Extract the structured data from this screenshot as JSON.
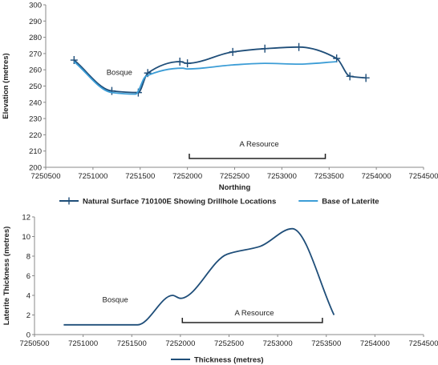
{
  "chart_data": [
    {
      "type": "line",
      "title": "",
      "xlabel": "Northing",
      "ylabel": "Elevation (metres)",
      "xlim": [
        7250500,
        7254500
      ],
      "ylim": [
        200,
        300
      ],
      "xticks": [
        7250500,
        7251000,
        7251500,
        7252000,
        7252500,
        7253000,
        7253500,
        7254000,
        7254500
      ],
      "yticks": [
        200,
        210,
        220,
        230,
        240,
        250,
        260,
        270,
        280,
        290,
        300
      ],
      "grid": false,
      "legend_position": "bottom",
      "series": [
        {
          "name": "Natural Surface 710100E Showing Drillhole Locations",
          "color": "#1f4e79",
          "markers": "plus",
          "x": [
            7250800,
            7251200,
            7251480,
            7251580,
            7251920,
            7252000,
            7252480,
            7252820,
            7253180,
            7253580,
            7253720,
            7253890
          ],
          "y": [
            266,
            247,
            246,
            258,
            265,
            264,
            271,
            273,
            274,
            267,
            256,
            255
          ]
        },
        {
          "name": "Base of Laterite",
          "color": "#3c9dd6",
          "markers": "none",
          "x": [
            7250800,
            7251200,
            7251450,
            7251560,
            7251950,
            7252000,
            7252480,
            7252820,
            7253180,
            7253580
          ],
          "y": [
            265,
            246,
            245,
            256,
            261,
            260.5,
            263,
            264,
            263.5,
            265
          ]
        }
      ],
      "annotations": [
        {
          "text": "Bosque",
          "x": 7251280,
          "y": 257
        },
        {
          "text": "A Resource",
          "x": 7252760,
          "y": 215,
          "bracket": [
            7252020,
            7253460
          ]
        }
      ]
    },
    {
      "type": "line",
      "title": "",
      "xlabel": "",
      "ylabel": "Laterite Thickness (metres)",
      "xlim": [
        7250500,
        7254500
      ],
      "ylim": [
        0,
        12
      ],
      "xticks": [
        7250500,
        7251000,
        7251500,
        7252000,
        7252500,
        7253000,
        7253500,
        7254000,
        7254500
      ],
      "yticks": [
        0,
        2,
        4,
        6,
        8,
        10,
        12
      ],
      "grid": false,
      "legend_position": "bottom",
      "series": [
        {
          "name": "Thickness (metres)",
          "color": "#1f4e79",
          "markers": "none",
          "x": [
            7250800,
            7251200,
            7251470,
            7251560,
            7251920,
            7252000,
            7252480,
            7252820,
            7253150,
            7253580
          ],
          "y": [
            1,
            1,
            1,
            1,
            4,
            3.7,
            8.2,
            9,
            10.8,
            2
          ]
        }
      ],
      "annotations": [
        {
          "text": "Bosque",
          "x": 7251330,
          "y": 3.3
        },
        {
          "text": "A Resource",
          "x": 7252760,
          "y": 2.2,
          "bracket": [
            7252020,
            7253460
          ]
        }
      ]
    }
  ]
}
